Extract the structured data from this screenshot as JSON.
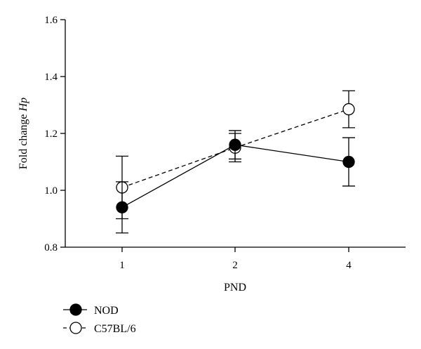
{
  "chart_data": {
    "type": "line",
    "xlabel": "PND",
    "ylabel": "Fold change",
    "ylabel_italic": "Hp",
    "categories": [
      "1",
      "2",
      "4"
    ],
    "ylim": [
      0.8,
      1.6
    ],
    "yticks": [
      "0.8",
      "1.0",
      "1.2",
      "1.4",
      "1.6"
    ],
    "grid": false,
    "legend_position": "bottom-left",
    "series": [
      {
        "name": "NOD",
        "marker": "filled-circle",
        "line": "solid",
        "color": "#000000",
        "values": [
          0.94,
          1.16,
          1.1
        ],
        "errors": [
          0.09,
          0.05,
          0.085
        ]
      },
      {
        "name": "C57BL/6",
        "marker": "open-circle",
        "line": "dashed",
        "color": "#000000",
        "values": [
          1.01,
          1.15,
          1.285
        ],
        "errors": [
          0.11,
          0.05,
          0.065
        ]
      }
    ]
  }
}
